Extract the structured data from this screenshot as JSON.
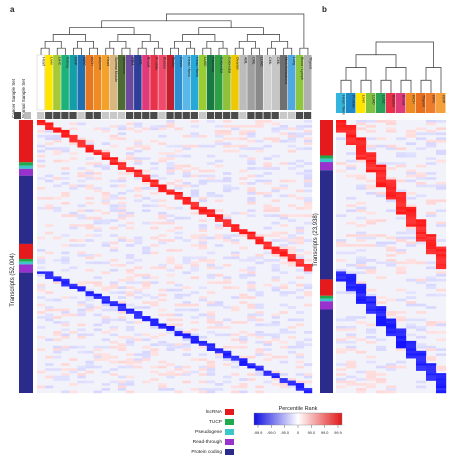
{
  "panels": [
    {
      "id": "a",
      "label": "a",
      "row_set_labels": [
        "Cancer Sample Set",
        "Normal Sample Set"
      ],
      "y_axis_label": "Transcripts (52,004)",
      "columns": [
        {
          "name": "Heart",
          "color": "#ffffff"
        },
        {
          "name": "Liver",
          "color": "#ffe500"
        },
        {
          "name": "LIHC",
          "color": "#a6c93a"
        },
        {
          "name": "Kidney",
          "color": "#1cb27a"
        },
        {
          "name": "KIRP",
          "color": "#12a0a6"
        },
        {
          "name": "KIRC",
          "color": "#1f6fb5"
        },
        {
          "name": "KICH",
          "color": "#e87722"
        },
        {
          "name": "Adipose",
          "color": "#f08a22"
        },
        {
          "name": "Heart",
          "color": "#f4a12c"
        },
        {
          "name": "Skeletal Muscle",
          "color": "#d8b880"
        },
        {
          "name": "Melanoma",
          "color": "#4f6b34"
        },
        {
          "name": "GBM",
          "color": "#6b4aa0"
        },
        {
          "name": "LGG",
          "color": "#2d3f96"
        },
        {
          "name": "Breast",
          "color": "#e03a7a"
        },
        {
          "name": "Prostate",
          "color": "#e8344a"
        },
        {
          "name": "Bladder",
          "color": "#f04b6b"
        },
        {
          "name": "Testes",
          "color": "#c2202e"
        },
        {
          "name": "Cervix",
          "color": "#2e8fd0"
        },
        {
          "name": "Head / Neck",
          "color": "#5ab8e8"
        },
        {
          "name": "Head / Neck",
          "color": "#26a8d8"
        },
        {
          "name": "LUSC",
          "color": "#9acd32"
        },
        {
          "name": "Pancreas",
          "color": "#1a7a44"
        },
        {
          "name": "Colorectal",
          "color": "#2ea043"
        },
        {
          "name": "Colorectal",
          "color": "#8fc23a"
        },
        {
          "name": "Ovarian",
          "color": "#f0c800"
        },
        {
          "name": "AML",
          "color": "#bcbcbc"
        },
        {
          "name": "CML",
          "color": "#a0a0a0"
        },
        {
          "name": "LUAD",
          "color": "#8a8a8a"
        },
        {
          "name": "CML",
          "color": "#d0d0d0"
        },
        {
          "name": "CML",
          "color": "#c6c6c6"
        },
        {
          "name": "Medulloblastoma",
          "color": "#707070"
        },
        {
          "name": "Lung",
          "color": "#4fa8e0"
        },
        {
          "name": "Blood / Lymph",
          "color": "#8fc63f"
        },
        {
          "name": "Thyroid",
          "color": "#b0b0b0"
        }
      ]
    },
    {
      "id": "b",
      "label": "b",
      "y_axis_label": "Transcripts (23,938)",
      "columns": [
        {
          "name": "Head / Neck",
          "color": "#35b4dd"
        },
        {
          "name": "Prostate",
          "color": "#1d89c9"
        },
        {
          "name": "Liver",
          "color": "#ffe500"
        },
        {
          "name": "LUAD",
          "color": "#7fc241"
        },
        {
          "name": "LUSC",
          "color": "#2aa25a"
        },
        {
          "name": "Bladder",
          "color": "#e8304a"
        },
        {
          "name": "Breast",
          "color": "#e03a7a"
        },
        {
          "name": "KICH",
          "color": "#f08a22"
        },
        {
          "name": "Thyroid",
          "color": "#e86f1d"
        },
        {
          "name": "KIRC",
          "color": "#ee7c2a"
        },
        {
          "name": "KIRP",
          "color": "#f5a03a"
        }
      ]
    }
  ],
  "legend": {
    "categories": [
      {
        "name": "lncRNA",
        "color": "#e41a1c"
      },
      {
        "name": "TUCP",
        "color": "#1faa4e"
      },
      {
        "name": "Pseudogene",
        "color": "#3cc8c8"
      },
      {
        "name": "Read-through",
        "color": "#9932cc"
      },
      {
        "name": "Protein coding",
        "color": "#2b2b8c"
      }
    ],
    "colorbar": {
      "title": "Percentile Rank",
      "ticks": [
        "-99.9",
        "-99.0",
        "-90.0",
        "0",
        "90.0",
        "99.0",
        "99.9"
      ],
      "low_color": "#1010e0",
      "mid_color": "#ffffff",
      "high_color": "#e01818"
    }
  },
  "chart_data": [
    {
      "type": "heatmap",
      "panel": "a",
      "ylabel": "Transcripts (52,004)",
      "n_columns": 34,
      "value_scale": "percentile rank",
      "value_range": [
        -99.9,
        99.9
      ],
      "row_category_blocks": [
        {
          "category": "lncRNA",
          "fraction": 0.155
        },
        {
          "category": "TUCP",
          "fraction": 0.012
        },
        {
          "category": "Pseudogene",
          "fraction": 0.012
        },
        {
          "category": "Read-through",
          "fraction": 0.025
        },
        {
          "category": "Protein coding",
          "fraction": 0.25
        },
        {
          "category": "lncRNA",
          "fraction": 0.055
        },
        {
          "category": "TUCP",
          "fraction": 0.01
        },
        {
          "category": "Pseudogene",
          "fraction": 0.01
        },
        {
          "category": "Read-through",
          "fraction": 0.03
        },
        {
          "category": "Protein coding",
          "fraction": 0.441
        }
      ]
    },
    {
      "type": "heatmap",
      "panel": "b",
      "ylabel": "Transcripts (23,938)",
      "n_columns": 11,
      "value_scale": "percentile rank",
      "value_range": [
        -99.9,
        99.9
      ],
      "row_category_blocks": [
        {
          "category": "lncRNA",
          "fraction": 0.13
        },
        {
          "category": "TUCP",
          "fraction": 0.012
        },
        {
          "category": "Pseudogene",
          "fraction": 0.012
        },
        {
          "category": "Read-through",
          "fraction": 0.03
        },
        {
          "category": "Protein coding",
          "fraction": 0.4
        },
        {
          "category": "lncRNA",
          "fraction": 0.06
        },
        {
          "category": "TUCP",
          "fraction": 0.01
        },
        {
          "category": "Pseudogene",
          "fraction": 0.01
        },
        {
          "category": "Read-through",
          "fraction": 0.03
        },
        {
          "category": "Protein coding",
          "fraction": 0.306
        }
      ]
    }
  ]
}
